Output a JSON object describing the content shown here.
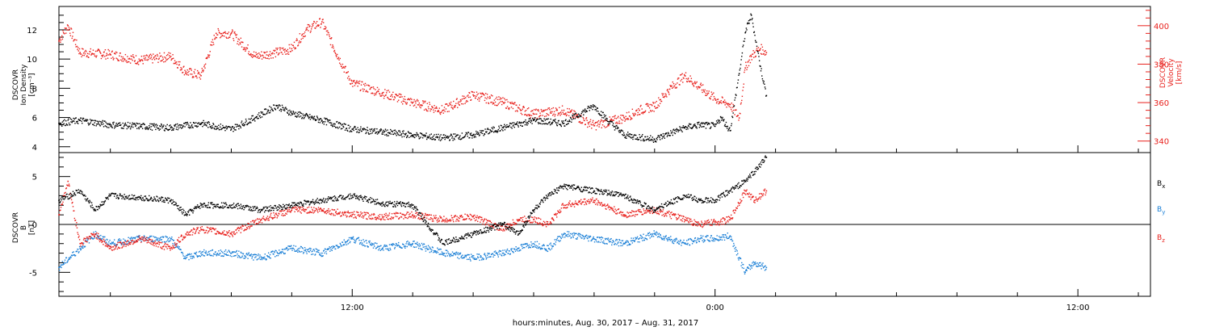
{
  "colors": {
    "density": "#000000",
    "velocity": "#e8201c",
    "bx": "#000000",
    "by": "#1a7fd6",
    "bz": "#e8201c",
    "axis": "#000000"
  },
  "xaxis": {
    "label": "hours:minutes, Aug. 30, 2017 – Aug. 31, 2017",
    "ticks": [
      "12:00",
      "0:00",
      "12:00"
    ]
  },
  "chart_data": [
    {
      "type": "scatter",
      "panel": "plasma",
      "x_unit": "hours since 2017-08-30 00:00",
      "xlim": [
        2.3,
        38.4
      ],
      "left_axis": {
        "label_lines": [
          "DSCOVR",
          "Ion Density",
          "[cm⁻³]"
        ],
        "ylim": [
          3.6,
          13.6
        ],
        "ticks": [
          4,
          6,
          8,
          10,
          12
        ]
      },
      "right_axis": {
        "label_lines": [
          "DSCOVR",
          "Velocity",
          "[km/s]"
        ],
        "ylim": [
          334,
          410
        ],
        "ticks": [
          340,
          360,
          380,
          400
        ]
      },
      "series": [
        {
          "name": "Ion Density",
          "axis": "left",
          "x": [
            2.3,
            3,
            4,
            5,
            6,
            7,
            8,
            8.8,
            9.5,
            10,
            11,
            12,
            13,
            14,
            15,
            16,
            17,
            18,
            19,
            20,
            20.5,
            21,
            22,
            23,
            23.5,
            24,
            24.2,
            24.5,
            24.8,
            25,
            25.2,
            25.5,
            25.7
          ],
          "y": [
            5.6,
            5.8,
            5.5,
            5.4,
            5.3,
            5.6,
            5.2,
            6.0,
            6.8,
            6.3,
            5.8,
            5.2,
            5.0,
            4.8,
            4.6,
            4.8,
            5.3,
            5.8,
            5.6,
            6.8,
            5.7,
            4.8,
            4.5,
            5.3,
            5.5,
            5.4,
            6.0,
            5.1,
            9.0,
            11.8,
            13.0,
            9.5,
            7.5
          ]
        },
        {
          "name": "Velocity",
          "axis": "right",
          "x": [
            2.3,
            2.6,
            3,
            4,
            5,
            6,
            6.5,
            7,
            7.5,
            8,
            8.8,
            9.5,
            10,
            10.5,
            11,
            11.5,
            12,
            13,
            14,
            15,
            16,
            17,
            18,
            19,
            20,
            21,
            21.5,
            22,
            22.5,
            23,
            23.5,
            24,
            24.3,
            24.5,
            24.8,
            25,
            25.2,
            25.5,
            25.7
          ],
          "y": [
            392,
            400,
            386,
            385,
            382,
            384,
            376,
            374,
            396,
            396,
            384,
            386,
            388,
            398,
            402,
            385,
            370,
            365,
            360,
            356,
            364,
            360,
            354,
            356,
            348,
            352,
            356,
            358,
            367,
            374,
            368,
            362,
            360,
            359,
            352,
            378,
            384,
            388,
            386
          ]
        }
      ]
    },
    {
      "type": "scatter",
      "panel": "magnetic",
      "x_unit": "hours since 2017-08-30 00:00",
      "xlim": [
        2.3,
        38.4
      ],
      "ylabel_lines": [
        "DSCOVR",
        "B",
        "[nT]"
      ],
      "ylim": [
        -7.5,
        7.5
      ],
      "yticks": [
        -5,
        0,
        5
      ],
      "zero_line": true,
      "legend": {
        "placement": "right",
        "entries": [
          {
            "base": "B",
            "sub": "x"
          },
          {
            "base": "B",
            "sub": "y"
          },
          {
            "base": "B",
            "sub": "z"
          }
        ]
      },
      "series": [
        {
          "name": "Bx",
          "x": [
            2.3,
            3,
            3.5,
            4,
            5,
            6,
            6.5,
            7,
            8,
            9,
            10,
            11,
            12,
            13,
            14,
            15,
            16,
            17,
            17.5,
            18,
            18.5,
            19,
            20,
            21,
            22,
            23,
            23.5,
            24,
            24.5,
            25,
            25.3,
            25.7
          ],
          "y": [
            2.5,
            3.5,
            1.5,
            3.0,
            2.8,
            2.5,
            1.0,
            2.0,
            2.0,
            1.5,
            2.0,
            2.5,
            3.0,
            2.2,
            2.0,
            -2.0,
            -1.0,
            0.0,
            -1.0,
            1.5,
            3.0,
            4.0,
            3.5,
            3.0,
            1.5,
            3.0,
            2.5,
            2.5,
            3.5,
            4.5,
            5.5,
            7.0
          ]
        },
        {
          "name": "By",
          "x": [
            2.3,
            3,
            3.5,
            4,
            5,
            6,
            6.5,
            7,
            8,
            9,
            10,
            11,
            12,
            13,
            14,
            15,
            16,
            17,
            17.5,
            18,
            18.5,
            19,
            20,
            21,
            22,
            23,
            23.5,
            24,
            24.5,
            25,
            25.3,
            25.7
          ],
          "y": [
            -4.5,
            -2.5,
            -1.0,
            -2.0,
            -1.5,
            -1.5,
            -3.5,
            -3.0,
            -3.0,
            -3.5,
            -2.5,
            -3.0,
            -1.5,
            -2.5,
            -2.0,
            -3.0,
            -3.5,
            -3.0,
            -2.5,
            -2.0,
            -2.5,
            -1.0,
            -1.5,
            -2.0,
            -1.0,
            -2.0,
            -1.5,
            -1.5,
            -1.2,
            -5.0,
            -4.0,
            -4.5
          ]
        },
        {
          "name": "Bz",
          "x": [
            2.3,
            2.6,
            3,
            3.5,
            4,
            5,
            6,
            6.5,
            7,
            8,
            9,
            10,
            11,
            12,
            13,
            14,
            15,
            16,
            17,
            17.5,
            18,
            18.5,
            19,
            20,
            21,
            22,
            23,
            23.5,
            24,
            24.5,
            25,
            25.3,
            25.7
          ],
          "y": [
            1.0,
            4.5,
            -2.0,
            -1.0,
            -2.5,
            -1.5,
            -2.5,
            -1.0,
            -0.5,
            -1.0,
            0.5,
            1.5,
            1.5,
            1.0,
            0.8,
            1.0,
            0.5,
            0.8,
            -0.5,
            0.5,
            0.5,
            0.0,
            2.0,
            2.5,
            1.0,
            1.5,
            0.5,
            0.0,
            0.2,
            0.5,
            3.5,
            2.5,
            3.5
          ]
        }
      ]
    }
  ]
}
